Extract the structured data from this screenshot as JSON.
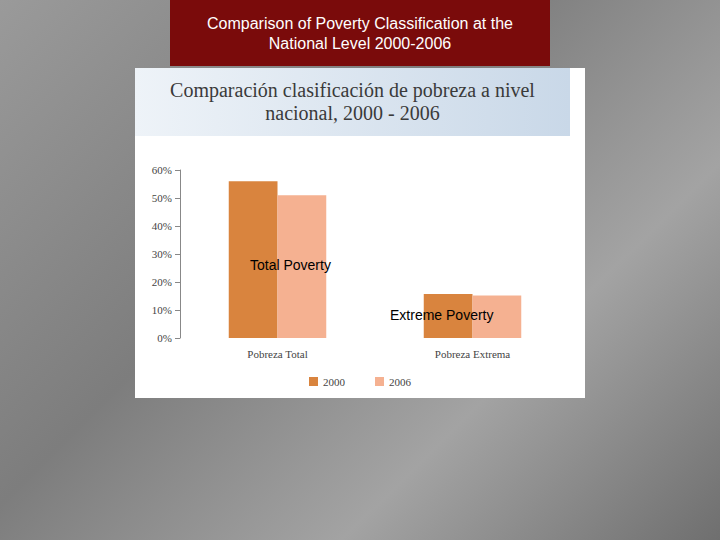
{
  "chart_data": {
    "type": "bar",
    "title": "Comparison of Poverty Classification at the National Level 2000-2006",
    "subtitle": "Comparación clasificación de pobreza a nivel nacional, 2000 - 2006",
    "categories": [
      "Pobreza Total",
      "Pobreza Extrema"
    ],
    "series": [
      {
        "name": "2000",
        "color": "#d9843e",
        "values": [
          56,
          15.7
        ]
      },
      {
        "name": "2006",
        "color": "#f5b191",
        "values": [
          51,
          15.2
        ]
      }
    ],
    "ylim": [
      0,
      60
    ],
    "yticks": [
      {
        "value": 0,
        "label": "0%"
      },
      {
        "value": 10,
        "label": "10%"
      },
      {
        "value": 20,
        "label": "20%"
      },
      {
        "value": 30,
        "label": "30%"
      },
      {
        "value": 40,
        "label": "40%"
      },
      {
        "value": 50,
        "label": "50%"
      },
      {
        "value": 60,
        "label": "60%"
      }
    ],
    "annotations": [
      "Total Poverty",
      "Extreme Poverty"
    ],
    "grid": false,
    "legend": "bottom"
  }
}
